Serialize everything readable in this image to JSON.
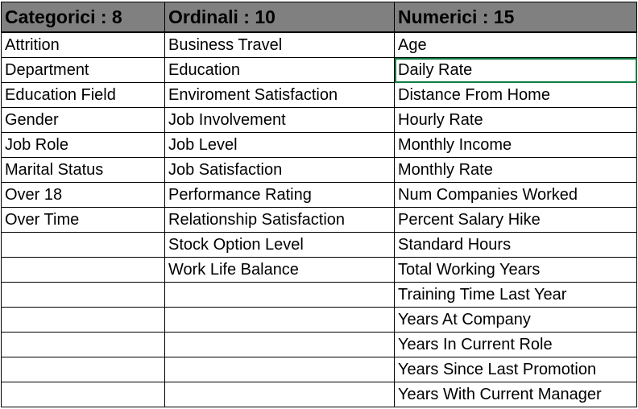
{
  "headers": [
    "Categorici : 8",
    "Ordinali : 10",
    "Numerici : 15"
  ],
  "categorici": [
    "Attrition",
    "Department",
    "Education Field",
    "Gender",
    "Job Role",
    "Marital Status",
    "Over 18",
    "Over Time"
  ],
  "ordinali": [
    "Business Travel",
    "Education",
    "Enviroment Satisfaction",
    "Job Involvement",
    "Job Level",
    "Job Satisfaction",
    "Performance Rating",
    "Relationship Satisfaction",
    "Stock Option Level",
    "Work Life Balance"
  ],
  "numerici": [
    "Age",
    "Daily Rate",
    "Distance From Home",
    "Hourly Rate",
    "Monthly Income",
    "Monthly Rate",
    "Num Companies Worked",
    "Percent Salary Hike",
    "Standard Hours",
    "Total Working Years",
    "Training Time Last Year",
    "Years At Company",
    "Years In Current Role",
    "Years Since Last Promotion",
    "Years With Current Manager"
  ],
  "selected_cell": "Daily Rate",
  "colors": {
    "header_bg": "#808080",
    "grid_line": "#000000",
    "selection": "#107c41"
  }
}
